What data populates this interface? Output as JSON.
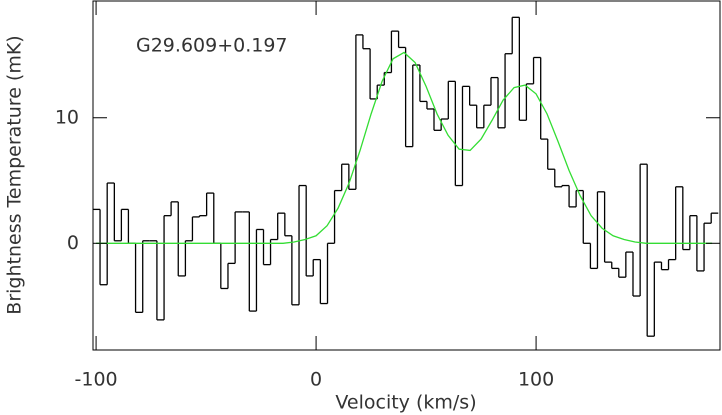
{
  "chart_data": {
    "type": "line",
    "xlabel": "Velocity (km/s)",
    "ylabel": "Brightness Temperature (mK)",
    "annotation": "G29.609+0.197",
    "xlim": [
      -101.4,
      183.6
    ],
    "xticks": [
      -100,
      0,
      100
    ],
    "ylim": [
      -8.5,
      19.3
    ],
    "yticks": [
      0,
      10
    ],
    "series": [
      {
        "color": "#000000",
        "drawstyle": "steps-mid",
        "x": [
          -99.8,
          -96.6,
          -93.3,
          -90.1,
          -86.9,
          -83.7,
          -80.4,
          -77.2,
          -74.0,
          -70.7,
          -67.5,
          -64.3,
          -61.0,
          -57.8,
          -54.6,
          -51.4,
          -48.1,
          -44.9,
          -41.7,
          -38.4,
          -35.2,
          -32.0,
          -28.7,
          -25.5,
          -22.3,
          -19.1,
          -15.8,
          -12.6,
          -9.4,
          -6.1,
          -2.9,
          0.3,
          3.6,
          6.8,
          10.0,
          13.3,
          16.5,
          19.7,
          22.9,
          26.2,
          29.4,
          32.6,
          35.9,
          39.1,
          42.3,
          45.6,
          48.8,
          52.0,
          55.2,
          58.5,
          61.7,
          64.9,
          68.2,
          71.4,
          74.6,
          77.9,
          81.1,
          84.3,
          87.5,
          90.8,
          94.0,
          97.2,
          100.5,
          103.7,
          106.9,
          110.1,
          113.4,
          116.6,
          119.8,
          123.1,
          126.3,
          129.5,
          132.8,
          136.0,
          139.2,
          142.4,
          145.7,
          148.9,
          152.1,
          155.4,
          158.6,
          161.8,
          165.1,
          168.3,
          171.5,
          174.7,
          178.0,
          181.2
        ],
        "values": [
          2.7,
          -3.3,
          4.8,
          0.2,
          2.7,
          0,
          -5.5,
          0.2,
          0.2,
          -6.1,
          2.2,
          3.3,
          -2.6,
          0.2,
          2.1,
          2.2,
          4.0,
          0,
          -3.6,
          -1.6,
          2.5,
          2.5,
          -5.4,
          1.1,
          -1.7,
          0.3,
          2.4,
          0.6,
          -4.9,
          4.6,
          -2.6,
          -1.3,
          -4.8,
          0,
          4.2,
          6.3,
          4.3,
          16.6,
          15.5,
          11.5,
          12.6,
          13.6,
          16.9,
          15.6,
          7.7,
          14.2,
          11.3,
          10.7,
          9.0,
          9.9,
          12.9,
          4.6,
          12.5,
          11.0,
          9.2,
          11.0,
          13.2,
          9.2,
          15.1,
          18.0,
          9.8,
          12.7,
          14.8,
          8.3,
          5.9,
          4.5,
          4.6,
          2.9,
          4.2,
          0,
          -2.0,
          4.1,
          -1.5,
          -2.0,
          -2.7,
          -0.7,
          -4.2,
          6.3,
          -7.4,
          -1.5,
          -2.1,
          -1.3,
          4.5,
          -0.5,
          2.2,
          -2.2,
          1.6,
          2.4
        ]
      },
      {
        "color": "#33dd33",
        "drawstyle": "default",
        "x": [
          -100,
          -95,
          -90,
          -85,
          -80,
          -75,
          -70,
          -65,
          -60,
          -55,
          -50,
          -45,
          -40,
          -35,
          -30,
          -25,
          -20,
          -15,
          -10,
          -5,
          0,
          5,
          10,
          15,
          20,
          25,
          30,
          35,
          40,
          45,
          50,
          55,
          60,
          65,
          70,
          75,
          80,
          85,
          90,
          95,
          100,
          105,
          110,
          115,
          120,
          125,
          130,
          135,
          140,
          145,
          150,
          155,
          160,
          165,
          170,
          175,
          180
        ],
        "values": [
          0,
          0,
          0,
          0,
          0,
          0,
          0,
          0,
          0,
          0,
          0,
          0,
          0,
          0,
          0,
          0,
          0,
          0,
          0.1,
          0.3,
          0.6,
          1.4,
          2.8,
          4.8,
          7.4,
          10.3,
          12.9,
          14.7,
          15.2,
          14.4,
          12.5,
          10.3,
          8.6,
          7.5,
          7.4,
          8.3,
          9.8,
          11.4,
          12.4,
          12.6,
          11.9,
          10.3,
          8.1,
          5.8,
          3.8,
          2.2,
          1.2,
          0.6,
          0.3,
          0.1,
          0,
          0,
          0,
          0,
          0,
          0,
          0
        ]
      }
    ]
  }
}
